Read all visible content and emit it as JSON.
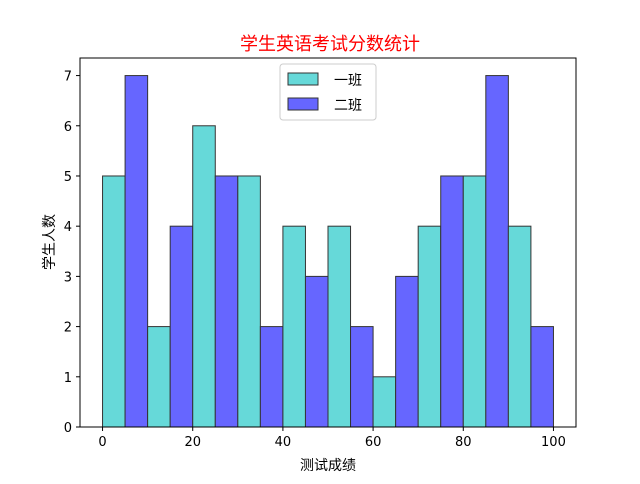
{
  "chart_data": {
    "type": "bar",
    "title": "学生英语考试分数统计",
    "title_color": "#ff0000",
    "xlabel": "测试成绩",
    "ylabel": "学生人数",
    "xlim": [
      -5,
      105
    ],
    "ylim": [
      0,
      7.35
    ],
    "xticks": [
      0,
      20,
      40,
      60,
      80,
      100
    ],
    "yticks": [
      0,
      1,
      2,
      3,
      4,
      5,
      6,
      7
    ],
    "bin_edges": [
      0,
      10,
      20,
      30,
      40,
      50,
      60,
      70,
      80,
      90,
      100
    ],
    "grid": false,
    "legend": {
      "position": "top-center"
    },
    "bar_edge_color": "#333333",
    "series": [
      {
        "name": "一班",
        "color": "#66d9d9",
        "values": [
          5,
          2,
          6,
          5,
          4,
          4,
          1,
          4,
          5,
          4
        ]
      },
      {
        "name": "二班",
        "color": "#6666ff",
        "values": [
          7,
          4,
          5,
          2,
          3,
          2,
          3,
          5,
          7,
          2
        ]
      }
    ]
  }
}
